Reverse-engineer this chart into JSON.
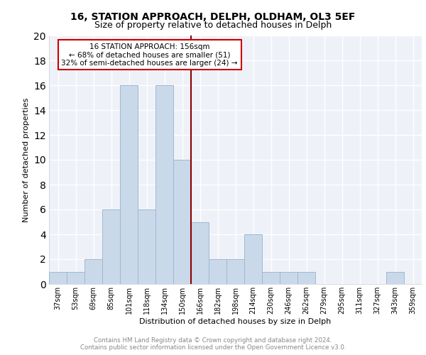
{
  "title1": "16, STATION APPROACH, DELPH, OLDHAM, OL3 5EF",
  "title2": "Size of property relative to detached houses in Delph",
  "xlabel": "Distribution of detached houses by size in Delph",
  "ylabel": "Number of detached properties",
  "bin_labels": [
    "37sqm",
    "53sqm",
    "69sqm",
    "85sqm",
    "101sqm",
    "118sqm",
    "134sqm",
    "150sqm",
    "166sqm",
    "182sqm",
    "198sqm",
    "214sqm",
    "230sqm",
    "246sqm",
    "262sqm",
    "279sqm",
    "295sqm",
    "311sqm",
    "327sqm",
    "343sqm",
    "359sqm"
  ],
  "bar_heights": [
    1,
    1,
    2,
    6,
    16,
    6,
    16,
    10,
    5,
    2,
    2,
    4,
    1,
    1,
    1,
    0,
    0,
    0,
    0,
    1,
    0
  ],
  "bar_color": "#c9d9ea",
  "bar_edgecolor": "#a0b8d0",
  "vline_x": 7.5,
  "vline_color": "#8b0000",
  "annotation_text": "16 STATION APPROACH: 156sqm\n← 68% of detached houses are smaller (51)\n32% of semi-detached houses are larger (24) →",
  "annotation_box_color": "#ffffff",
  "annotation_box_edgecolor": "#cc0000",
  "ylim": [
    0,
    20
  ],
  "yticks": [
    0,
    2,
    4,
    6,
    8,
    10,
    12,
    14,
    16,
    18,
    20
  ],
  "footer1": "Contains HM Land Registry data © Crown copyright and database right 2024.",
  "footer2": "Contains public sector information licensed under the Open Government Licence v3.0.",
  "bg_color": "#eef2f8"
}
